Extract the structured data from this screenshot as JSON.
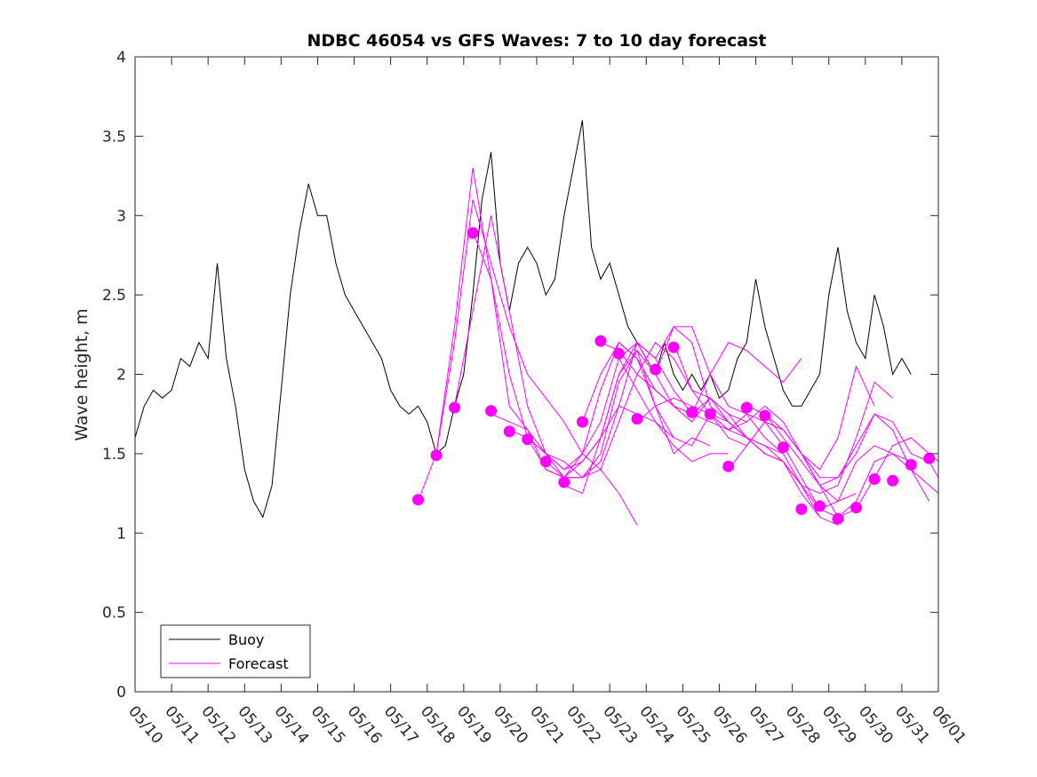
{
  "chart_data": {
    "type": "line",
    "title": "NDBC 46054 vs GFS Waves: 7 to 10 day forecast",
    "xlabel": "",
    "ylabel": "Wave height, m",
    "x_tick_labels": [
      "05/10",
      "05/11",
      "05/12",
      "05/13",
      "05/14",
      "05/15",
      "05/16",
      "05/17",
      "05/18",
      "05/19",
      "05/20",
      "05/21",
      "05/22",
      "05/23",
      "05/24",
      "05/25",
      "05/26",
      "05/27",
      "05/28",
      "05/29",
      "05/30",
      "05/31",
      "06/01"
    ],
    "y_ticks": [
      0,
      0.5,
      1,
      1.5,
      2,
      2.5,
      3,
      3.5,
      4
    ],
    "y_tick_labels": [
      "0",
      "0.5",
      "1",
      "1.5",
      "2",
      "2.5",
      "3",
      "3.5",
      "4"
    ],
    "xlim_days": [
      0,
      22
    ],
    "ylim": [
      0,
      4
    ],
    "grid": false,
    "legend_position": "bottom-left",
    "legend": [
      "Buoy",
      "Forecast"
    ],
    "colors": {
      "buoy": "#000000",
      "forecast": "#ff00ff"
    },
    "buoy": {
      "name": "Buoy",
      "x": [
        0.0,
        0.25,
        0.5,
        0.75,
        1.0,
        1.25,
        1.5,
        1.75,
        2.0,
        2.25,
        2.5,
        2.75,
        3.0,
        3.25,
        3.5,
        3.75,
        4.0,
        4.25,
        4.5,
        4.75,
        5.0,
        5.25,
        5.5,
        5.75,
        6.0,
        6.25,
        6.5,
        6.75,
        7.0,
        7.25,
        7.5,
        7.75,
        8.0,
        8.25,
        8.5,
        8.75,
        9.0,
        9.25,
        9.5,
        9.75,
        10.0,
        10.25,
        10.5,
        10.75,
        11.0,
        11.25,
        11.5,
        11.75,
        12.0,
        12.25,
        12.5,
        12.75,
        13.0,
        13.25,
        13.5,
        13.75,
        14.0,
        14.25,
        14.5,
        14.75,
        15.0,
        15.25,
        15.5,
        15.75,
        16.0,
        16.25,
        16.5,
        16.75,
        17.0,
        17.25,
        17.5,
        17.75,
        18.0,
        18.25,
        18.5,
        18.75,
        19.0,
        19.25,
        19.5,
        19.75,
        20.0,
        20.25,
        20.5,
        20.75,
        21.0,
        21.25
      ],
      "y": [
        1.6,
        1.8,
        1.9,
        1.85,
        1.9,
        2.1,
        2.05,
        2.2,
        2.1,
        2.7,
        2.1,
        1.8,
        1.4,
        1.2,
        1.1,
        1.3,
        1.9,
        2.5,
        2.9,
        3.2,
        3.0,
        3.0,
        2.7,
        2.5,
        2.4,
        2.3,
        2.2,
        2.1,
        1.9,
        1.8,
        1.75,
        1.8,
        1.7,
        1.5,
        1.55,
        1.8,
        2.0,
        2.5,
        3.1,
        3.4,
        2.7,
        2.4,
        2.7,
        2.8,
        2.7,
        2.5,
        2.6,
        3.0,
        3.3,
        3.6,
        2.8,
        2.6,
        2.7,
        2.5,
        2.3,
        2.2,
        2.1,
        2.0,
        2.2,
        2.0,
        1.9,
        2.0,
        1.9,
        2.0,
        1.85,
        1.9,
        2.1,
        2.2,
        2.6,
        2.3,
        2.1,
        1.9,
        1.8,
        1.8,
        1.9,
        2.0,
        2.5,
        2.8,
        2.4,
        2.2,
        2.1,
        2.5,
        2.3,
        2.0,
        2.1,
        2.0
      ]
    },
    "forecast_series": [
      {
        "x": [
          7.75,
          8.25,
          8.75,
          9.25,
          9.75,
          10.25,
          10.75,
          11.25,
          11.75,
          12.25,
          12.75,
          13.25,
          13.75
        ],
        "y": [
          1.2,
          1.5,
          2.2,
          3.1,
          2.7,
          2.3,
          2.0,
          1.85,
          1.7,
          1.5,
          1.4,
          1.25,
          1.05
        ]
      },
      {
        "x": [
          8.25,
          8.75,
          9.25,
          9.75,
          10.25,
          10.75,
          11.25,
          11.75,
          12.25,
          12.75,
          13.25,
          13.75,
          14.25
        ],
        "y": [
          1.5,
          2.3,
          3.3,
          2.6,
          2.0,
          1.6,
          1.4,
          1.35,
          1.5,
          1.7,
          2.1,
          2.2,
          2.0
        ]
      },
      {
        "x": [
          8.75,
          9.25,
          9.75,
          10.25,
          10.75,
          11.25,
          11.75,
          12.25,
          12.75,
          13.25,
          13.75,
          14.25,
          14.75
        ],
        "y": [
          1.8,
          2.4,
          3.0,
          2.4,
          1.8,
          1.5,
          1.4,
          1.5,
          1.9,
          2.2,
          2.1,
          1.8,
          1.6
        ]
      },
      {
        "x": [
          9.25,
          9.75,
          10.25,
          10.75,
          11.25,
          11.75,
          12.25,
          12.75,
          13.25,
          13.75,
          14.25,
          14.75,
          15.25
        ],
        "y": [
          2.9,
          2.6,
          1.8,
          1.65,
          1.5,
          1.35,
          1.35,
          1.45,
          1.8,
          2.2,
          2.1,
          1.9,
          1.75
        ]
      },
      {
        "x": [
          9.75,
          10.25,
          10.75,
          11.25,
          11.75,
          12.25,
          12.75,
          13.25,
          13.75,
          14.25,
          14.75,
          15.25,
          15.75
        ],
        "y": [
          1.75,
          1.7,
          1.65,
          1.4,
          1.35,
          1.45,
          1.6,
          2.0,
          2.15,
          1.8,
          1.5,
          1.6,
          1.55
        ]
      },
      {
        "x": [
          10.25,
          10.75,
          11.25,
          11.75,
          12.25,
          12.75,
          13.25,
          13.75,
          14.25,
          14.75,
          15.25,
          15.75,
          16.25
        ],
        "y": [
          1.65,
          1.6,
          1.5,
          1.4,
          1.45,
          1.6,
          1.8,
          1.75,
          1.7,
          1.55,
          1.45,
          1.5,
          1.5
        ]
      },
      {
        "x": [
          10.75,
          11.25,
          11.75,
          12.25,
          12.75,
          13.25,
          13.75,
          14.25,
          14.75,
          15.25,
          15.75,
          16.25,
          16.75
        ],
        "y": [
          1.6,
          1.5,
          1.45,
          1.35,
          1.4,
          1.7,
          2.0,
          2.2,
          2.1,
          1.9,
          1.85,
          1.75,
          1.7
        ]
      },
      {
        "x": [
          11.25,
          11.75,
          12.25,
          12.75,
          13.25,
          13.75,
          14.25,
          14.75,
          15.25,
          15.75,
          16.25,
          16.75,
          17.25
        ],
        "y": [
          1.45,
          1.35,
          1.35,
          1.5,
          1.95,
          2.15,
          2.0,
          1.8,
          1.75,
          1.85,
          1.7,
          1.6,
          1.5
        ]
      },
      {
        "x": [
          11.75,
          12.25,
          12.75,
          13.25,
          13.75,
          14.25,
          14.75,
          15.25,
          15.75,
          16.25,
          16.75,
          17.25,
          17.75
        ],
        "y": [
          1.3,
          1.25,
          1.6,
          2.0,
          2.2,
          2.1,
          2.3,
          2.2,
          1.8,
          1.7,
          1.6,
          1.55,
          1.5
        ]
      },
      {
        "x": [
          12.25,
          12.75,
          13.25,
          13.75,
          14.25,
          14.75,
          15.25,
          15.75,
          16.25,
          16.75,
          17.25,
          17.75,
          18.25
        ],
        "y": [
          1.7,
          2.0,
          2.2,
          2.1,
          1.9,
          1.8,
          1.75,
          2.0,
          2.2,
          2.15,
          2.05,
          1.95,
          2.1
        ]
      },
      {
        "x": [
          12.75,
          13.25,
          13.75,
          14.25,
          14.75,
          15.25,
          15.75,
          16.25,
          16.75,
          17.25,
          17.75,
          18.25,
          18.75
        ],
        "y": [
          2.2,
          2.15,
          2.0,
          1.9,
          1.8,
          1.7,
          1.85,
          1.75,
          1.6,
          1.55,
          1.45,
          1.3,
          1.1
        ]
      },
      {
        "x": [
          13.25,
          13.75,
          14.25,
          14.75,
          15.25,
          15.75,
          16.25,
          16.75,
          17.25,
          17.75,
          18.25,
          18.75,
          19.25
        ],
        "y": [
          2.1,
          1.9,
          1.7,
          1.6,
          1.55,
          1.75,
          1.7,
          1.6,
          1.5,
          1.45,
          1.25,
          1.1,
          1.05
        ]
      },
      {
        "x": [
          13.75,
          14.25,
          14.75,
          15.25,
          15.75,
          16.25,
          16.75,
          17.25,
          17.75,
          18.25,
          18.75,
          19.25,
          19.75
        ],
        "y": [
          1.7,
          1.8,
          1.85,
          1.8,
          1.75,
          1.65,
          1.7,
          1.8,
          1.7,
          1.5,
          1.3,
          1.2,
          1.25
        ]
      },
      {
        "x": [
          14.25,
          14.75,
          15.25,
          15.75,
          16.25,
          16.75,
          17.25,
          17.75,
          18.25,
          18.75,
          19.25,
          19.75,
          20.25
        ],
        "y": [
          2.0,
          2.3,
          2.3,
          2.0,
          1.8,
          1.75,
          1.7,
          1.65,
          1.5,
          1.4,
          1.6,
          2.05,
          1.8
        ]
      },
      {
        "x": [
          14.75,
          15.25,
          15.75,
          16.25,
          16.75,
          17.25,
          17.75,
          18.25,
          18.75,
          19.25,
          19.75,
          20.25,
          20.75
        ],
        "y": [
          2.2,
          1.9,
          1.75,
          1.65,
          1.6,
          1.5,
          1.45,
          1.3,
          1.25,
          1.3,
          1.6,
          1.95,
          1.85
        ]
      },
      {
        "x": [
          15.25,
          15.75,
          16.25,
          16.75,
          17.25,
          17.75,
          18.25,
          18.75,
          19.25,
          19.75,
          20.25,
          20.75,
          21.25
        ],
        "y": [
          1.75,
          1.7,
          1.65,
          1.75,
          1.6,
          1.5,
          1.3,
          1.15,
          1.2,
          1.45,
          1.55,
          1.5,
          1.45
        ]
      },
      {
        "x": [
          15.75,
          16.25,
          16.75,
          17.25,
          17.75,
          18.25,
          18.75,
          19.25,
          19.75,
          20.25,
          20.75,
          21.25,
          21.75
        ],
        "y": [
          1.75,
          1.6,
          1.55,
          1.7,
          1.55,
          1.35,
          1.15,
          1.1,
          1.2,
          1.45,
          1.5,
          1.4,
          1.2
        ]
      },
      {
        "x": [
          16.25,
          16.75,
          17.25,
          17.75,
          18.25,
          18.75,
          19.25,
          19.75,
          20.25,
          20.75,
          21.25,
          21.75,
          22.0
        ],
        "y": [
          1.4,
          1.55,
          1.7,
          1.65,
          1.5,
          1.3,
          1.1,
          1.15,
          1.35,
          1.55,
          1.6,
          1.5,
          1.45
        ]
      },
      {
        "x": [
          16.75,
          17.25,
          17.75,
          18.25,
          18.75,
          19.25,
          19.75,
          20.25,
          20.75,
          21.25,
          21.75,
          22.0
        ],
        "y": [
          1.8,
          1.75,
          1.6,
          1.45,
          1.3,
          1.35,
          1.55,
          1.75,
          1.7,
          1.5,
          1.45,
          1.35
        ]
      },
      {
        "x": [
          17.25,
          17.75,
          18.25,
          18.75,
          19.25,
          19.75,
          20.25,
          20.75,
          21.25,
          21.75,
          22.0
        ],
        "y": [
          1.75,
          1.65,
          1.5,
          1.35,
          1.35,
          1.5,
          1.75,
          1.65,
          1.4,
          1.3,
          1.25
        ]
      }
    ],
    "forecast_markers": {
      "x": [
        7.75,
        8.25,
        8.75,
        9.25,
        9.75,
        10.25,
        10.75,
        11.25,
        11.75,
        12.25,
        12.75,
        13.25,
        13.75,
        14.25,
        14.75,
        15.25,
        15.75,
        16.25,
        16.75,
        17.25,
        17.75,
        18.25,
        18.75,
        19.25,
        19.75,
        20.25,
        20.75,
        21.25,
        21.75
      ],
      "y": [
        1.21,
        1.49,
        1.79,
        2.89,
        1.77,
        1.64,
        1.59,
        1.45,
        1.32,
        1.7,
        2.21,
        2.13,
        1.72,
        2.03,
        2.17,
        1.76,
        1.75,
        1.42,
        1.79,
        1.74,
        1.54,
        1.15,
        1.17,
        1.09,
        1.16,
        1.34,
        1.33,
        1.43,
        1.47
      ]
    }
  }
}
